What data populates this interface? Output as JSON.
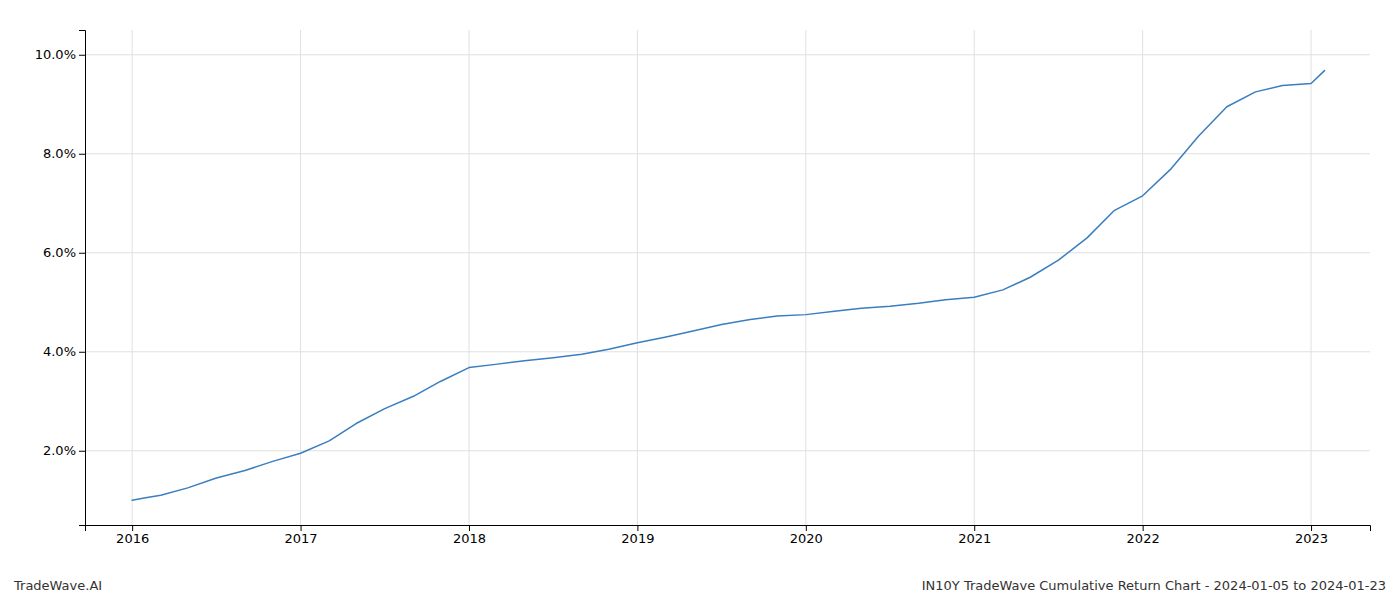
{
  "chart_data": {
    "type": "line",
    "x": [
      2016.0,
      2016.08,
      2016.17,
      2016.33,
      2016.5,
      2016.67,
      2016.83,
      2017.0,
      2017.17,
      2017.33,
      2017.5,
      2017.67,
      2017.83,
      2018.0,
      2018.17,
      2018.33,
      2018.5,
      2018.67,
      2018.83,
      2019.0,
      2019.17,
      2019.33,
      2019.5,
      2019.67,
      2019.83,
      2020.0,
      2020.17,
      2020.33,
      2020.5,
      2020.67,
      2020.83,
      2021.0,
      2021.17,
      2021.33,
      2021.5,
      2021.67,
      2021.83,
      2022.0,
      2022.17,
      2022.33,
      2022.5,
      2022.67,
      2022.83,
      2023.0,
      2023.08
    ],
    "values": [
      1.0,
      1.05,
      1.1,
      1.25,
      1.45,
      1.6,
      1.78,
      1.95,
      2.2,
      2.55,
      2.85,
      3.1,
      3.4,
      3.68,
      3.75,
      3.82,
      3.88,
      3.95,
      4.05,
      4.18,
      4.3,
      4.42,
      4.55,
      4.65,
      4.72,
      4.75,
      4.82,
      4.88,
      4.92,
      4.98,
      5.05,
      5.1,
      5.25,
      5.5,
      5.85,
      6.3,
      6.85,
      7.15,
      7.7,
      8.35,
      8.95,
      9.25,
      9.38,
      9.42,
      9.68
    ],
    "color": "#3a7ebf",
    "xlim": [
      2015.72,
      2023.35
    ],
    "xticks": [
      2016,
      2017,
      2018,
      2019,
      2020,
      2021,
      2022,
      2023
    ],
    "ylim": [
      0.5,
      10.5
    ],
    "yticks": [
      {
        "value": 2.0,
        "label": "2.0%"
      },
      {
        "value": 4.0,
        "label": "4.0%"
      },
      {
        "value": 6.0,
        "label": "6.0%"
      },
      {
        "value": 8.0,
        "label": "8.0%"
      },
      {
        "value": 10.0,
        "label": "10.0%"
      }
    ],
    "grid": true,
    "annotations": [
      "TradeWave.AI",
      "IN10Y TradeWave Cumulative Return Chart - 2024-01-05 to 2024-01-23"
    ]
  }
}
